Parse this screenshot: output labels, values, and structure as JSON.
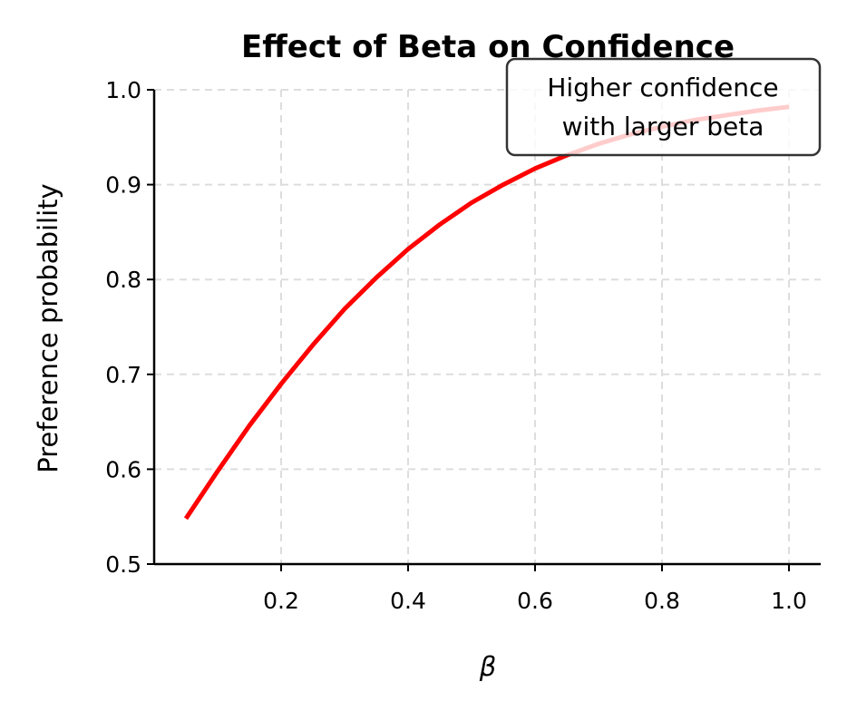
{
  "chart_data": {
    "type": "line",
    "title": "Effect of Beta on Confidence",
    "xlabel": "β",
    "ylabel": "Preference probability",
    "xlim": [
      0.0,
      1.05
    ],
    "ylim": [
      0.5,
      1.0
    ],
    "xticks": [
      0.2,
      0.4,
      0.6,
      0.8,
      1.0
    ],
    "xtick_labels": [
      "0.2",
      "0.4",
      "0.6",
      "0.8",
      "1.0"
    ],
    "yticks": [
      0.5,
      0.6,
      0.7,
      0.8,
      0.9,
      1.0
    ],
    "ytick_labels": [
      "0.5",
      "0.6",
      "0.7",
      "0.8",
      "0.9",
      "1.0"
    ],
    "grid": true,
    "series": [
      {
        "name": "preference probability",
        "color": "#ff0000",
        "x": [
          0.05,
          0.1,
          0.15,
          0.2,
          0.25,
          0.3,
          0.35,
          0.4,
          0.45,
          0.5,
          0.55,
          0.6,
          0.65,
          0.7,
          0.75,
          0.8,
          0.85,
          0.9,
          0.95,
          1.0
        ],
        "y": [
          0.548,
          0.598,
          0.646,
          0.69,
          0.731,
          0.769,
          0.802,
          0.832,
          0.858,
          0.881,
          0.9,
          0.917,
          0.931,
          0.943,
          0.953,
          0.961,
          0.968,
          0.973,
          0.978,
          0.982
        ]
      }
    ],
    "annotation": {
      "lines": [
        "Higher confidence",
        "with larger beta"
      ]
    }
  }
}
